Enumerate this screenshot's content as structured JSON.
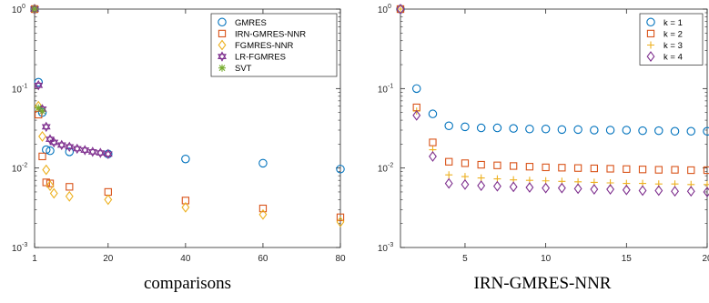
{
  "captions": [
    "comparisons",
    "IRN-GMRES-NNR"
  ],
  "chart_data": [
    {
      "type": "scatter",
      "caption": "comparisons",
      "xlabel": "",
      "ylabel": "",
      "xlim": [
        1,
        80
      ],
      "ylim": [
        0.001,
        1
      ],
      "yscale": "log",
      "xticks": [
        1,
        20,
        40,
        60,
        80
      ],
      "xtick_labels": [
        "1",
        "20",
        "40",
        "60",
        "80"
      ],
      "yticks": [
        0.001,
        0.01,
        0.1,
        1
      ],
      "ytick_labels": [
        "10",
        "10",
        "10",
        "10"
      ],
      "ytick_exponents": [
        "-3",
        "-2",
        "-1",
        "0"
      ],
      "grid": false,
      "legend_position": "top-right",
      "series": [
        {
          "name": "GMRES",
          "marker": "circle",
          "color": "#0072BD",
          "x": [
            1,
            2,
            3,
            4,
            5,
            10,
            20,
            40,
            60,
            80
          ],
          "y": [
            1,
            0.12,
            0.05,
            0.017,
            0.0165,
            0.016,
            0.015,
            0.013,
            0.0115,
            0.0097
          ]
        },
        {
          "name": "IRN-GMRES-NNR",
          "marker": "square",
          "color": "#D95319",
          "x": [
            1,
            2,
            3,
            4,
            5,
            10,
            20,
            40,
            60,
            80
          ],
          "y": [
            1,
            0.047,
            0.014,
            0.0066,
            0.0064,
            0.0058,
            0.005,
            0.0039,
            0.0031,
            0.0024
          ]
        },
        {
          "name": "FGMRES-NNR",
          "marker": "diamond",
          "color": "#EDB120",
          "x": [
            1,
            2,
            3,
            4,
            5,
            6,
            10,
            20,
            40,
            60,
            80
          ],
          "y": [
            1,
            0.06,
            0.025,
            0.0095,
            0.006,
            0.0048,
            0.0044,
            0.004,
            0.0032,
            0.0026,
            0.0021
          ]
        },
        {
          "name": "LR-FGMRES",
          "marker": "hexagram",
          "color": "#7E2F8E",
          "x": [
            1,
            2,
            3,
            4,
            5,
            6,
            8,
            10,
            12,
            14,
            16,
            18,
            20
          ],
          "y": [
            1,
            0.11,
            0.055,
            0.033,
            0.023,
            0.021,
            0.0195,
            0.0185,
            0.0175,
            0.0168,
            0.016,
            0.0155,
            0.015
          ]
        },
        {
          "name": "SVT",
          "marker": "asterisk",
          "color": "#77AC30",
          "x": [
            1,
            2,
            3
          ],
          "y": [
            1,
            0.057,
            0.052
          ]
        }
      ]
    },
    {
      "type": "scatter",
      "caption": "IRN-GMRES-NNR",
      "xlabel": "",
      "ylabel": "",
      "xlim": [
        1,
        20
      ],
      "ylim": [
        0.001,
        1
      ],
      "yscale": "log",
      "xticks": [
        5,
        10,
        15,
        20
      ],
      "xtick_labels": [
        "5",
        "10",
        "15",
        "20"
      ],
      "yticks": [
        0.001,
        0.01,
        0.1,
        1
      ],
      "ytick_labels": [
        "10",
        "10",
        "10",
        "10"
      ],
      "ytick_exponents": [
        "-3",
        "-2",
        "-1",
        "0"
      ],
      "grid": false,
      "legend_position": "top-right",
      "series": [
        {
          "name": "k = 1",
          "marker": "circle",
          "color": "#0072BD",
          "x": [
            1,
            2,
            3,
            4,
            5,
            6,
            7,
            8,
            9,
            10,
            11,
            12,
            13,
            14,
            15,
            16,
            17,
            18,
            19,
            20
          ],
          "y": [
            1,
            0.1,
            0.048,
            0.034,
            0.033,
            0.032,
            0.032,
            0.0315,
            0.031,
            0.031,
            0.0305,
            0.0305,
            0.03,
            0.03,
            0.03,
            0.0295,
            0.0295,
            0.029,
            0.029,
            0.029
          ]
        },
        {
          "name": "k = 2",
          "marker": "square",
          "color": "#D95319",
          "x": [
            1,
            2,
            3,
            4,
            5,
            6,
            7,
            8,
            9,
            10,
            11,
            12,
            13,
            14,
            15,
            16,
            17,
            18,
            19,
            20
          ],
          "y": [
            1,
            0.058,
            0.021,
            0.012,
            0.0115,
            0.011,
            0.0108,
            0.0106,
            0.0104,
            0.0102,
            0.0101,
            0.01,
            0.0099,
            0.0098,
            0.0097,
            0.0096,
            0.0095,
            0.0095,
            0.0094,
            0.0094
          ]
        },
        {
          "name": "k = 3",
          "marker": "plus",
          "color": "#EDB120",
          "x": [
            1,
            2,
            3,
            4,
            5,
            6,
            7,
            8,
            9,
            10,
            11,
            12,
            13,
            14,
            15,
            16,
            17,
            18,
            19,
            20
          ],
          "y": [
            1,
            0.052,
            0.017,
            0.0082,
            0.0078,
            0.0075,
            0.0073,
            0.0071,
            0.007,
            0.0069,
            0.0068,
            0.0067,
            0.0066,
            0.0065,
            0.0064,
            0.0064,
            0.0063,
            0.0063,
            0.0062,
            0.0062
          ]
        },
        {
          "name": "k = 4",
          "marker": "diamond",
          "color": "#7E2F8E",
          "x": [
            1,
            2,
            3,
            4,
            5,
            6,
            7,
            8,
            9,
            10,
            11,
            12,
            13,
            14,
            15,
            16,
            17,
            18,
            19,
            20
          ],
          "y": [
            1,
            0.046,
            0.014,
            0.0064,
            0.0062,
            0.006,
            0.0059,
            0.0058,
            0.0057,
            0.0056,
            0.0056,
            0.0055,
            0.0054,
            0.0054,
            0.0053,
            0.0052,
            0.0052,
            0.0051,
            0.0051,
            0.005
          ]
        }
      ]
    }
  ]
}
